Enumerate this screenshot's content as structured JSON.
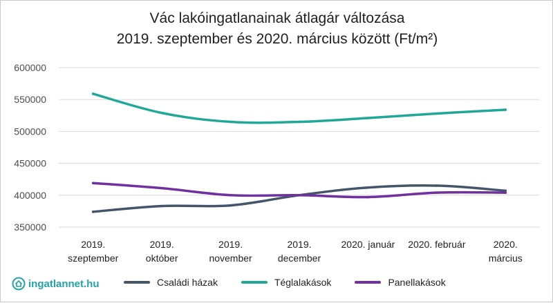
{
  "title_line1": "Vác lakóingatlanainak átlagár változása",
  "title_line2": "2019. szeptember és 2020. március között (Ft/m²)",
  "logo_text": "ingatlannet.hu",
  "colors": {
    "csaladi": "#44546a",
    "tegla": "#1fa898",
    "panel": "#7030a0",
    "grid": "#d9d9d9",
    "logo": "#22a3a8"
  },
  "chart_data": {
    "type": "line",
    "title": "Vác lakóingatlanainak átlagár változása 2019. szeptember és 2020. március között (Ft/m²)",
    "xlabel": "",
    "ylabel": "",
    "categories": [
      [
        "2019.",
        "szeptember"
      ],
      [
        "2019.",
        "október"
      ],
      [
        "2019.",
        "november"
      ],
      [
        "2019.",
        "december"
      ],
      [
        "2020. január"
      ],
      [
        "2020. február"
      ],
      [
        "2020.",
        "március"
      ]
    ],
    "ylim": [
      350000,
      600000
    ],
    "yticks": [
      "350000",
      "400000",
      "450000",
      "500000",
      "550000",
      "600000"
    ],
    "grid": true,
    "legend_position": "bottom",
    "series": [
      {
        "name": "Családi házak",
        "color_key": "csaladi",
        "values": [
          374000,
          383000,
          384000,
          400000,
          412000,
          415000,
          407000
        ]
      },
      {
        "name": "Téglalakások",
        "color_key": "tegla",
        "values": [
          559000,
          529000,
          515000,
          515000,
          521000,
          528000,
          534000
        ]
      },
      {
        "name": "Panellakások",
        "color_key": "panel",
        "values": [
          419000,
          411000,
          400000,
          400000,
          397000,
          404000,
          404000
        ]
      }
    ]
  }
}
